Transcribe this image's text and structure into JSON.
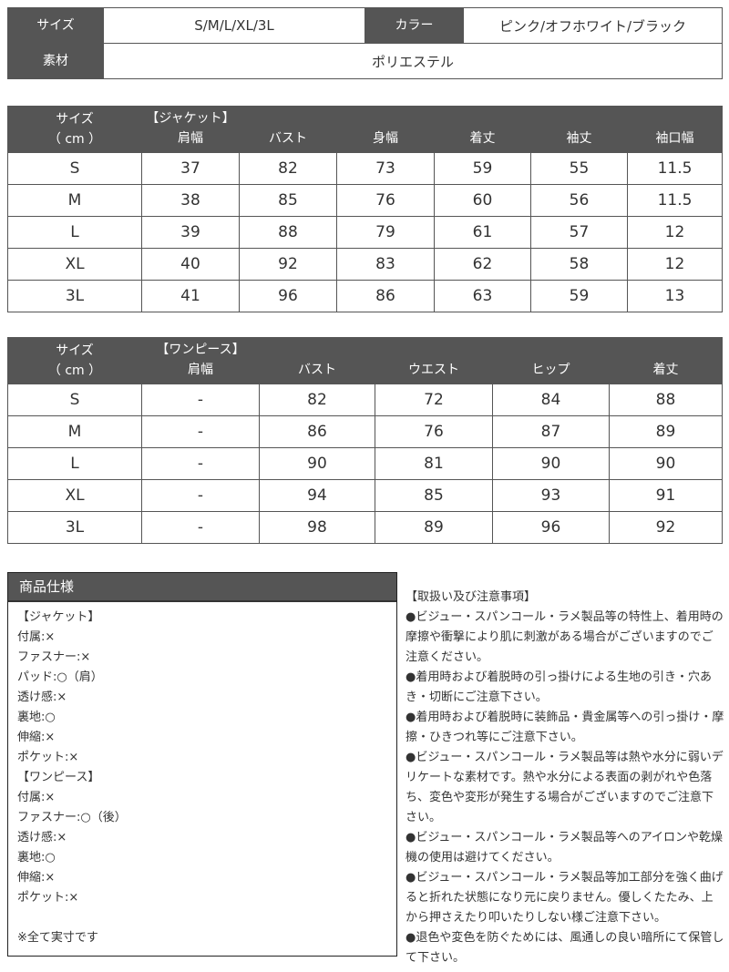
{
  "info": {
    "size_label": "サイズ",
    "size_value": "S/M/L/XL/3L",
    "color_label": "カラー",
    "color_value": "ピンク/オフホワイト/ブラック",
    "material_label": "素材",
    "material_value": "ポリエステル"
  },
  "jacket": {
    "size_header": [
      "サイズ",
      "（ cm ）"
    ],
    "headers": [
      "【ジャケット】\n肩幅",
      "バスト",
      "身幅",
      "着丈",
      "袖丈",
      "袖口幅"
    ],
    "rows": [
      [
        "S",
        "37",
        "82",
        "73",
        "59",
        "55",
        "11.5"
      ],
      [
        "M",
        "38",
        "85",
        "76",
        "60",
        "56",
        "11.5"
      ],
      [
        "L",
        "39",
        "88",
        "79",
        "61",
        "57",
        "12"
      ],
      [
        "XL",
        "40",
        "92",
        "83",
        "62",
        "58",
        "12"
      ],
      [
        "3L",
        "41",
        "96",
        "86",
        "63",
        "59",
        "13"
      ]
    ]
  },
  "dress": {
    "size_header": [
      "サイズ",
      "（ cm ）"
    ],
    "headers": [
      "【ワンピース】\n肩幅",
      "バスト",
      "ウエスト",
      "ヒップ",
      "着丈"
    ],
    "rows": [
      [
        "S",
        "-",
        "82",
        "72",
        "84",
        "88"
      ],
      [
        "M",
        "-",
        "86",
        "76",
        "87",
        "89"
      ],
      [
        "L",
        "-",
        "90",
        "81",
        "90",
        "90"
      ],
      [
        "XL",
        "-",
        "94",
        "85",
        "93",
        "91"
      ],
      [
        "3L",
        "-",
        "98",
        "89",
        "96",
        "92"
      ]
    ]
  },
  "spec": {
    "title": "商品仕様",
    "lines": [
      "【ジャケット】",
      "付属:×",
      "ファスナー:×",
      "パッド:○（肩）",
      "透け感:×",
      "裏地:○",
      "伸縮:×",
      "ポケット:×",
      "【ワンピース】",
      "付属:×",
      "ファスナー:○（後）",
      "透け感:×",
      "裏地:○",
      "伸縮:×",
      "ポケット:×"
    ],
    "note": "※全て実寸です"
  },
  "notes": {
    "title": "【取扱い及び注意事項】",
    "items": [
      "●ビジュー・スパンコール・ラメ製品等の特性上、着用時の摩擦や衝撃により肌に刺激がある場合がございますのでご注意ください。",
      "●着用時および着脱時の引っ掛けによる生地の引き・穴あき・切断にご注意下さい。",
      "●着用時および着脱時に装飾品・貴金属等への引っ掛け・摩擦・ひきつれ等にご注意下さい。",
      "●ビジュー・スパンコール・ラメ製品等は熱や水分に弱いデリケートな素材です。熱や水分による表面の剥がれや色落ち、変色や変形が発生する場合がございますのでご注意下さい。",
      "●ビジュー・スパンコール・ラメ製品等へのアイロンや乾燥機の使用は避けてください。",
      "●ビジュー・スパンコール・ラメ製品等加工部分を強く曲げると折れた状態になり元に戻りません。優しくたたみ、上から押さえたり叩いたりしない様ご注意下さい。",
      "●退色や変色を防ぐためには、風通しの良い暗所にて保管して下さい。"
    ]
  }
}
